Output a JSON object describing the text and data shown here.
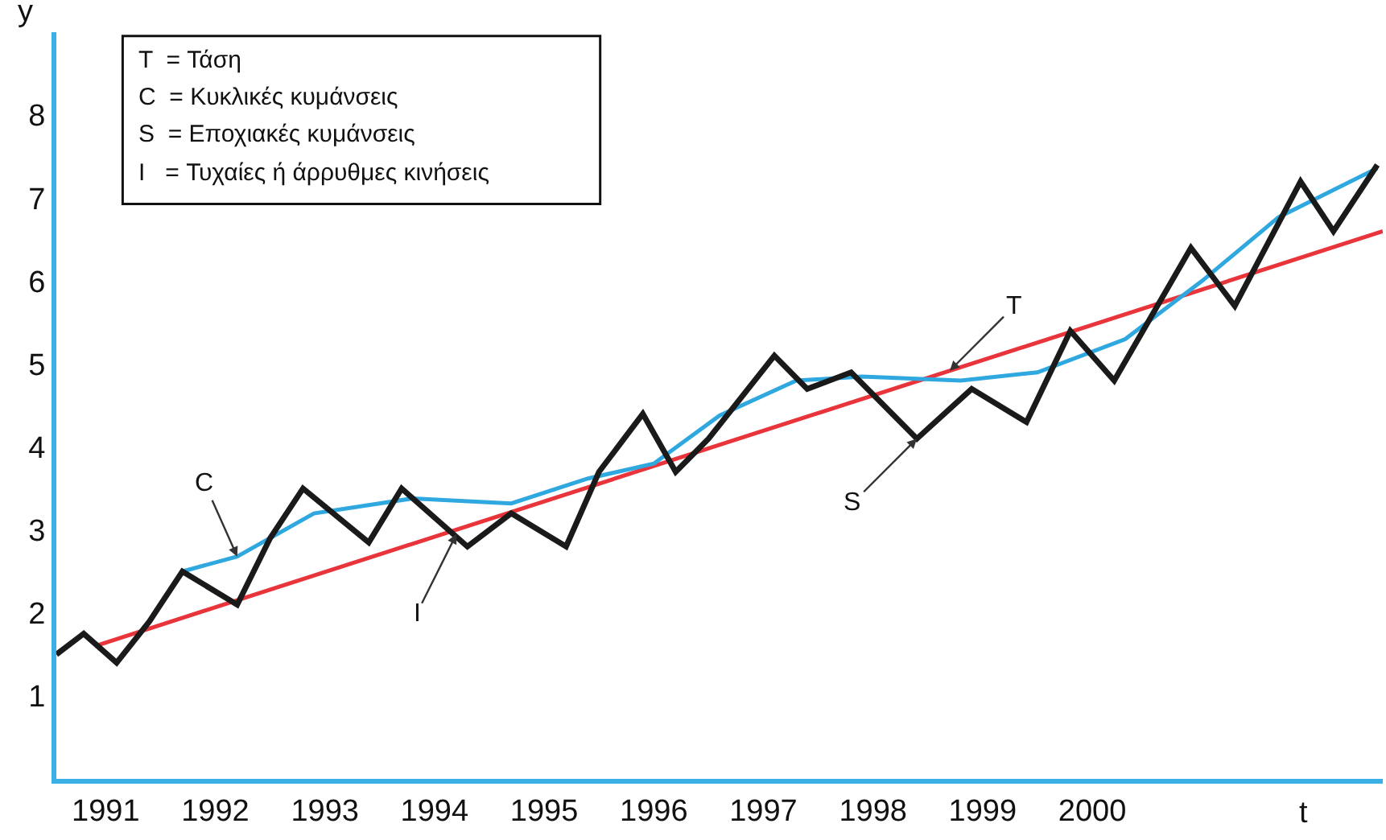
{
  "chart_data": {
    "type": "line",
    "xlabel": "t",
    "ylabel": "y",
    "xlim": [
      1990.55,
      2002.65
    ],
    "ylim": [
      0,
      9
    ],
    "xticks": [
      {
        "value": 1991,
        "label": "1991"
      },
      {
        "value": 1992,
        "label": "1992"
      },
      {
        "value": 1993,
        "label": "1993"
      },
      {
        "value": 1994,
        "label": "1994"
      },
      {
        "value": 1995,
        "label": "1995"
      },
      {
        "value": 1996,
        "label": "1996"
      },
      {
        "value": 1997,
        "label": "1997"
      },
      {
        "value": 1998,
        "label": "1998"
      },
      {
        "value": 1999,
        "label": "1999"
      },
      {
        "value": 2000,
        "label": "2000"
      }
    ],
    "yticks": [
      1,
      2,
      3,
      4,
      5,
      6,
      7,
      8
    ],
    "marker": "none",
    "line_style": "solid",
    "series": [
      {
        "color": "#e8343a",
        "x": [
          1990.9,
          2002.65
        ],
        "values": [
          1.6,
          6.6
        ]
      },
      {
        "color": "#2fa8e0",
        "x": [
          1991.7,
          1992.2,
          1992.9,
          1993.8,
          1994.7,
          1995.4,
          1996.0,
          1996.6,
          1997.3,
          1997.9,
          1998.8,
          1999.5,
          2000.3,
          2001.0,
          2001.7,
          2002.6
        ],
        "values": [
          2.5,
          2.68,
          3.2,
          3.38,
          3.32,
          3.62,
          3.8,
          4.38,
          4.8,
          4.85,
          4.8,
          4.9,
          5.3,
          6.0,
          6.77,
          7.36
        ]
      },
      {
        "color": "#1a1a1a",
        "x": [
          1990.55,
          1990.8,
          1991.1,
          1991.4,
          1991.7,
          1992.2,
          1992.5,
          1992.8,
          1993.4,
          1993.7,
          1994.3,
          1994.7,
          1995.2,
          1995.5,
          1995.9,
          1996.2,
          1996.5,
          1997.1,
          1997.4,
          1997.8,
          1998.4,
          1998.9,
          1999.4,
          1999.8,
          2000.2,
          2000.9,
          2001.3,
          2001.9,
          2002.2,
          2002.6
        ],
        "values": [
          1.5,
          1.75,
          1.4,
          1.9,
          2.5,
          2.1,
          2.9,
          3.5,
          2.85,
          3.5,
          2.8,
          3.2,
          2.8,
          3.7,
          4.4,
          3.7,
          4.1,
          5.1,
          4.7,
          4.9,
          4.1,
          4.7,
          4.3,
          5.4,
          4.8,
          6.4,
          5.7,
          7.2,
          6.6,
          7.4
        ]
      }
    ],
    "annotations": [
      "T  = Τάση",
      "C  = Κυκλικές κυμάνσεις",
      "S  = Εποχιακές κυμάνσεις",
      "I   = Τυχαίες ή άρρυθμες κινήσεις",
      {
        "text": "T",
        "x": 1998.7,
        "y": 4.92
      },
      {
        "text": "C",
        "x": 1992.2,
        "y": 2.68
      },
      {
        "text": "S",
        "x": 1998.4,
        "y": 4.1
      },
      {
        "text": "I",
        "x": 1994.2,
        "y": 2.95
      }
    ]
  }
}
